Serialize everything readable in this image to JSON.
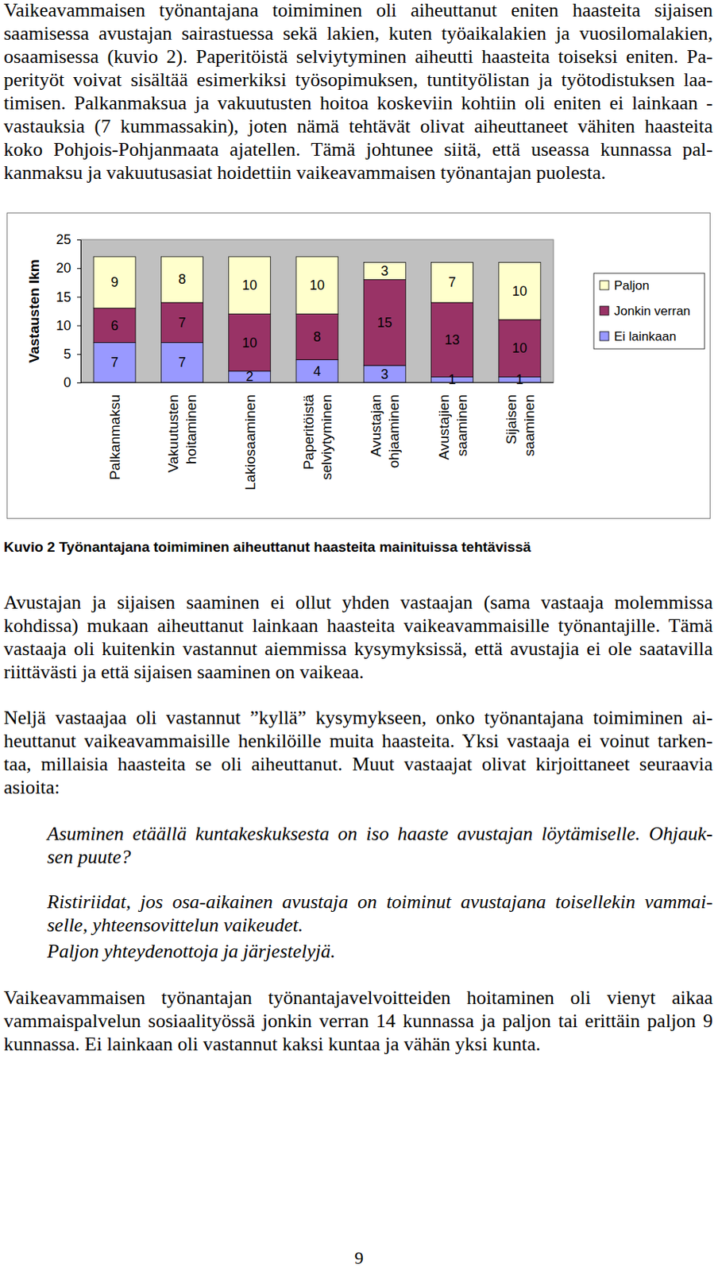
{
  "page": {
    "paragraph_1": [
      "Vaikeavammaisen työnantajana toimiminen oli aiheuttanut eniten haasteita sijaisen",
      "saamisessa avustajan sairastuessa sekä lakien, kuten työaikalakien ja vuosilomalakien,",
      "osaamisessa (kuvio 2). Paperitöistä selviytyminen aiheutti haasteita toiseksi eniten. Pa-",
      "perityöt voivat sisältää esimerkiksi työsopimuksen, tuntityölistan ja työtodistuksen laa-",
      "timisen. Palkanmaksua ja vakuutusten hoitoa koskeviin kohtiin oli eniten ei lainkaan -",
      "vastauksia (7 kummassakin), joten nämä tehtävät olivat aiheuttaneet vähiten haasteita",
      "koko Pohjois-Pohjanmaata ajatellen. Tämä johtunee siitä, että useassa kunnassa pal-",
      "kanmaksu ja vakuutusasiat hoidettiin vaikeavammaisen työnantajan puolesta."
    ],
    "caption": "Kuvio 2 Työnantajana toimiminen aiheuttanut haasteita mainituissa tehtävissä",
    "paragraph_2": [
      "Avustajan ja sijaisen saaminen ei ollut yhden vastaajan (sama vastaaja molemmissa",
      "kohdissa) mukaan aiheuttanut lainkaan haasteita vaikeavammaisille työnantajille. Tämä",
      "vastaaja oli kuitenkin vastannut aiemmissa kysymyksissä, että avustajia ei ole saatavilla",
      "riittävästi ja että sijaisen saaminen on vaikeaa."
    ],
    "paragraph_3": [
      "Neljä vastaajaa oli vastannut ”kyllä” kysymykseen, onko työnantajana toimiminen ai-",
      "heuttanut vaikeavammaisille henkilöille muita haasteita. Yksi vastaaja ei voinut tarken-",
      "taa, millaisia haasteita se oli aiheuttanut. Muut vastaajat olivat kirjoittaneet seuraavia",
      "asioita:"
    ],
    "quotes": [
      [
        "Asuminen etäällä kuntakeskuksesta on iso haaste avustajan löytämiselle. Ohjauk-",
        "sen puute?"
      ],
      [
        "Ristiriidat, jos osa-aikainen avustaja on toiminut avustajana toisellekin vammai-",
        "selle, yhteensovittelun vaikeudet."
      ],
      [
        "Paljon yhteydenottoja ja järjestelyjä."
      ]
    ],
    "paragraph_4": [
      "Vaikeavammaisen työnantajan työnantajavelvoitteiden hoitaminen oli vienyt aikaa",
      "vammaispalvelun sosiaalityössä jonkin verran 14 kunnassa ja paljon tai erittäin paljon 9",
      "kunnassa. Ei lainkaan oli vastannut kaksi kuntaa ja vähän yksi kunta."
    ],
    "page_number": "9"
  },
  "chart_data": {
    "type": "bar",
    "stacked": true,
    "data_labels": true,
    "grid": false,
    "legend": "right",
    "y_label": "Vastausten lkm",
    "categories": [
      "Palkanmaksu",
      "Vakuutusten hoitaminen",
      "Lakiosaaminen",
      "Paperitöistä selviytyminen",
      "Avustajan ohjaaminen",
      "Avustajien saaminen",
      "Sijaisen saaminen"
    ],
    "series": [
      {
        "name": "Ei lainkaan",
        "color": "#9999ff",
        "values": [
          7,
          7,
          2,
          4,
          3,
          1,
          1
        ]
      },
      {
        "name": "Jonkin verran",
        "color": "#993366",
        "values": [
          6,
          7,
          10,
          8,
          15,
          13,
          10
        ]
      },
      {
        "name": "Paljon",
        "color": "#ffffcc",
        "values": [
          9,
          8,
          10,
          10,
          3,
          7,
          10
        ]
      }
    ],
    "ylim": [
      0,
      25
    ],
    "yticks": [
      0,
      5,
      10,
      15,
      20,
      25
    ]
  }
}
